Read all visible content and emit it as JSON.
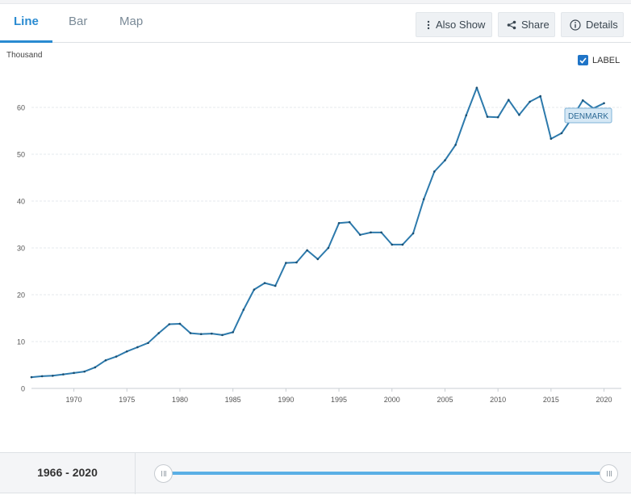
{
  "tabs": [
    {
      "label": "Line",
      "active": true
    },
    {
      "label": "Bar",
      "active": false
    },
    {
      "label": "Map",
      "active": false
    }
  ],
  "toolbar": {
    "also_show": "Also Show",
    "share": "Share",
    "details": "Details"
  },
  "label_toggle": {
    "text": "LABEL",
    "checked": true
  },
  "range": {
    "start": "1966",
    "sep": " - ",
    "end": "2020"
  },
  "colors": {
    "accent": "#2a8bd1",
    "line": "#2d7aac",
    "slider": "#5aafe5"
  },
  "chart_data": {
    "type": "line",
    "unit_label": "Thousand",
    "ylim": [
      0,
      65
    ],
    "xlim": [
      1966,
      2020
    ],
    "y_ticks": [
      0,
      10,
      20,
      30,
      40,
      50,
      60
    ],
    "x_ticks": [
      1970,
      1975,
      1980,
      1985,
      1990,
      1995,
      2000,
      2005,
      2010,
      2015,
      2020
    ],
    "grid": true,
    "series": [
      {
        "name": "DENMARK",
        "x": [
          1966,
          1967,
          1968,
          1969,
          1970,
          1971,
          1972,
          1973,
          1974,
          1975,
          1976,
          1977,
          1978,
          1979,
          1980,
          1981,
          1982,
          1983,
          1984,
          1985,
          1986,
          1987,
          1988,
          1989,
          1990,
          1991,
          1992,
          1993,
          1994,
          1995,
          1996,
          1997,
          1998,
          1999,
          2000,
          2001,
          2002,
          2003,
          2004,
          2005,
          2006,
          2007,
          2008,
          2009,
          2010,
          2011,
          2012,
          2013,
          2014,
          2015,
          2016,
          2017,
          2018,
          2019,
          2020
        ],
        "values": [
          2.4,
          2.6,
          2.7,
          3.0,
          3.3,
          3.6,
          4.5,
          6.0,
          6.8,
          7.9,
          8.8,
          9.7,
          11.8,
          13.7,
          13.8,
          11.8,
          11.6,
          11.7,
          11.4,
          12.0,
          16.8,
          21.1,
          22.5,
          21.9,
          26.8,
          26.9,
          29.5,
          27.6,
          30.0,
          35.3,
          35.5,
          32.8,
          33.3,
          33.3,
          30.7,
          30.7,
          33.1,
          40.4,
          46.3,
          48.7,
          52.0,
          58.3,
          64.2,
          58.0,
          57.9,
          61.6,
          58.4,
          61.2,
          62.4,
          53.3,
          54.5,
          57.8,
          61.5,
          59.8,
          60.9
        ]
      }
    ]
  }
}
